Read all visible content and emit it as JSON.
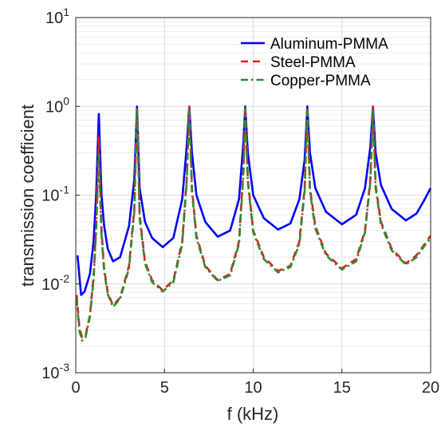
{
  "chart_data": {
    "type": "line",
    "xlabel": "f (kHz)",
    "ylabel": "transmission coefficient",
    "xlim": [
      0,
      20
    ],
    "ylim": [
      0.001,
      10
    ],
    "yscale": "log",
    "grid": true,
    "legend_position": "top-right",
    "x_ticks": [
      {
        "value": 0,
        "label": "0"
      },
      {
        "value": 5,
        "label": "5"
      },
      {
        "value": 10,
        "label": "10"
      },
      {
        "value": 15,
        "label": "15"
      },
      {
        "value": 20,
        "label": "20"
      }
    ],
    "y_ticks": [
      {
        "value": 0.001,
        "base": "10",
        "exp": "-3"
      },
      {
        "value": 0.01,
        "base": "10",
        "exp": "-2"
      },
      {
        "value": 0.1,
        "base": "10",
        "exp": "-1"
      },
      {
        "value": 1,
        "base": "10",
        "exp": "0"
      },
      {
        "value": 10,
        "base": "10",
        "exp": "1"
      }
    ],
    "series": [
      {
        "name": "Aluminum-PMMA",
        "color": "#0000ff",
        "style": "solid",
        "x": [
          0.1,
          0.3,
          0.5,
          0.8,
          1.0,
          1.15,
          1.3,
          1.45,
          1.6,
          1.8,
          2.1,
          2.5,
          3.0,
          3.3,
          3.45,
          3.6,
          3.9,
          4.3,
          4.9,
          5.5,
          6.0,
          6.25,
          6.4,
          6.55,
          6.8,
          7.3,
          8.0,
          8.7,
          9.2,
          9.45,
          9.55,
          9.7,
          10.0,
          10.6,
          11.4,
          12.1,
          12.6,
          12.9,
          13.05,
          13.2,
          13.5,
          14.1,
          15.0,
          15.8,
          16.3,
          16.6,
          16.75,
          16.9,
          17.2,
          17.8,
          18.6,
          19.2,
          19.6,
          20.0
        ],
        "y": [
          0.021,
          0.0075,
          0.0082,
          0.013,
          0.03,
          0.1,
          0.82,
          0.1,
          0.045,
          0.025,
          0.018,
          0.02,
          0.045,
          0.15,
          1.0,
          0.12,
          0.05,
          0.033,
          0.026,
          0.033,
          0.09,
          0.35,
          1.0,
          0.3,
          0.1,
          0.05,
          0.034,
          0.04,
          0.09,
          0.4,
          1.0,
          0.3,
          0.1,
          0.055,
          0.041,
          0.048,
          0.09,
          0.25,
          1.0,
          0.3,
          0.12,
          0.065,
          0.047,
          0.06,
          0.12,
          0.35,
          1.0,
          0.3,
          0.13,
          0.07,
          0.052,
          0.062,
          0.085,
          0.12
        ]
      },
      {
        "name": "Steel-PMMA",
        "color": "#e02020",
        "style": "dashed",
        "x": [
          0.05,
          0.2,
          0.35,
          0.55,
          0.8,
          1.0,
          1.15,
          1.3,
          1.45,
          1.6,
          1.8,
          2.1,
          2.5,
          3.0,
          3.3,
          3.45,
          3.6,
          3.9,
          4.3,
          4.9,
          5.5,
          6.0,
          6.25,
          6.4,
          6.55,
          6.8,
          7.3,
          8.0,
          8.7,
          9.2,
          9.45,
          9.55,
          9.7,
          10.0,
          10.6,
          11.4,
          12.1,
          12.6,
          12.9,
          13.05,
          13.2,
          13.5,
          14.1,
          15.0,
          15.8,
          16.3,
          16.6,
          16.75,
          16.9,
          17.2,
          17.8,
          18.6,
          19.2,
          19.6,
          20.0
        ],
        "y": [
          0.0075,
          0.0033,
          0.0025,
          0.0026,
          0.0045,
          0.012,
          0.045,
          0.45,
          0.04,
          0.015,
          0.008,
          0.0057,
          0.007,
          0.016,
          0.07,
          1.0,
          0.06,
          0.018,
          0.011,
          0.0085,
          0.011,
          0.03,
          0.15,
          1.0,
          0.12,
          0.035,
          0.016,
          0.011,
          0.013,
          0.03,
          0.2,
          1.0,
          0.15,
          0.04,
          0.02,
          0.014,
          0.016,
          0.03,
          0.12,
          1.0,
          0.12,
          0.045,
          0.022,
          0.015,
          0.019,
          0.04,
          0.15,
          1.0,
          0.13,
          0.05,
          0.025,
          0.017,
          0.021,
          0.027,
          0.035
        ]
      },
      {
        "name": "Copper-PMMA",
        "color": "#2e8b2e",
        "style": "dashdot",
        "x": [
          0.05,
          0.2,
          0.35,
          0.55,
          0.8,
          1.0,
          1.15,
          1.3,
          1.45,
          1.6,
          1.8,
          2.1,
          2.5,
          3.0,
          3.3,
          3.45,
          3.6,
          3.9,
          4.3,
          4.9,
          5.5,
          6.0,
          6.25,
          6.4,
          6.55,
          6.8,
          7.3,
          8.0,
          8.7,
          9.2,
          9.45,
          9.55,
          9.7,
          10.0,
          10.6,
          11.4,
          12.1,
          12.6,
          12.9,
          13.05,
          13.2,
          13.5,
          14.1,
          15.0,
          15.8,
          16.3,
          16.6,
          16.75,
          16.9,
          17.2,
          17.8,
          18.6,
          19.2,
          19.6,
          20.0
        ],
        "y": [
          0.0068,
          0.003,
          0.0023,
          0.0025,
          0.0043,
          0.011,
          0.04,
          0.3,
          0.035,
          0.014,
          0.0077,
          0.0055,
          0.0068,
          0.015,
          0.065,
          0.95,
          0.055,
          0.017,
          0.0105,
          0.0082,
          0.0105,
          0.028,
          0.14,
          0.9,
          0.11,
          0.033,
          0.0155,
          0.0108,
          0.0125,
          0.028,
          0.18,
          0.95,
          0.14,
          0.038,
          0.019,
          0.0135,
          0.0155,
          0.028,
          0.11,
          0.9,
          0.11,
          0.042,
          0.021,
          0.0145,
          0.018,
          0.038,
          0.14,
          0.9,
          0.12,
          0.047,
          0.024,
          0.0165,
          0.02,
          0.026,
          0.033
        ]
      }
    ]
  }
}
